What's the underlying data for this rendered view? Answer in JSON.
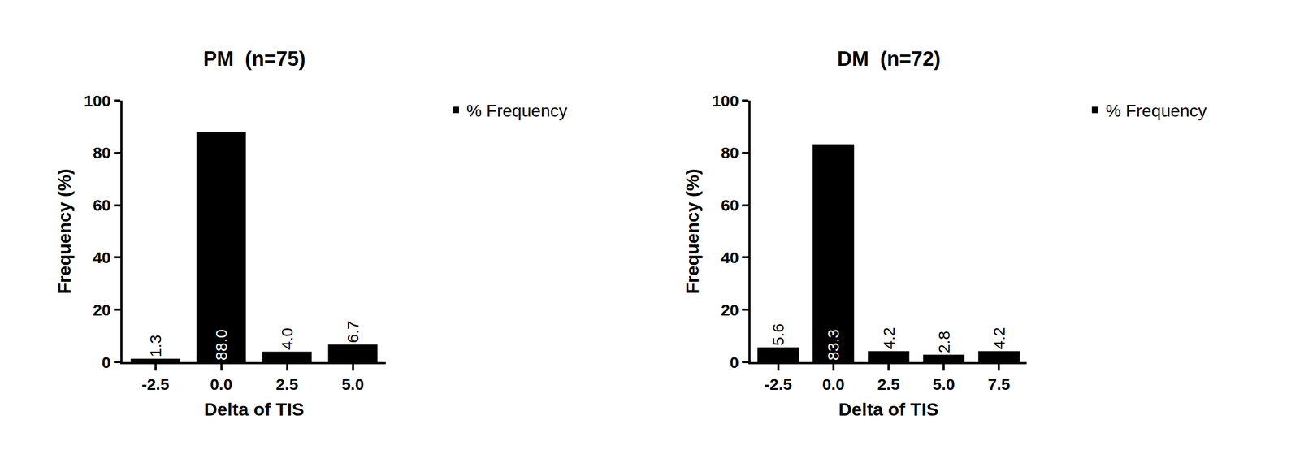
{
  "chart_data": [
    {
      "type": "bar",
      "title": "PM  (n=75)",
      "x_label": "Delta of TIS",
      "y_label": "Frequency (%)",
      "categories": [
        "-2.5",
        "0.0",
        "2.5",
        "5.0"
      ],
      "series": [
        {
          "name": "% Frequency",
          "color": "#000000",
          "values": [
            1.3,
            88.0,
            4.0,
            6.7
          ],
          "value_labels": [
            "1.3",
            "88.0",
            "4.0",
            "6.7"
          ]
        }
      ],
      "ylim": [
        0,
        100
      ],
      "yticks": [
        0,
        20,
        40,
        60,
        80,
        100
      ],
      "grid": false,
      "data_labels": true,
      "legend": "right"
    },
    {
      "type": "bar",
      "title": "DM  (n=72)",
      "x_label": "Delta of TIS",
      "y_label": "Frequency (%)",
      "categories": [
        "-2.5",
        "0.0",
        "2.5",
        "5.0",
        "7.5"
      ],
      "series": [
        {
          "name": "% Frequency",
          "color": "#000000",
          "values": [
            5.6,
            83.3,
            4.2,
            2.8,
            4.2
          ],
          "value_labels": [
            "5.6",
            "83.3",
            "4.2",
            "2.8",
            "4.2"
          ]
        }
      ],
      "ylim": [
        0,
        100
      ],
      "yticks": [
        0,
        20,
        40,
        60,
        80,
        100
      ],
      "grid": false,
      "data_labels": true,
      "legend": "right"
    }
  ]
}
